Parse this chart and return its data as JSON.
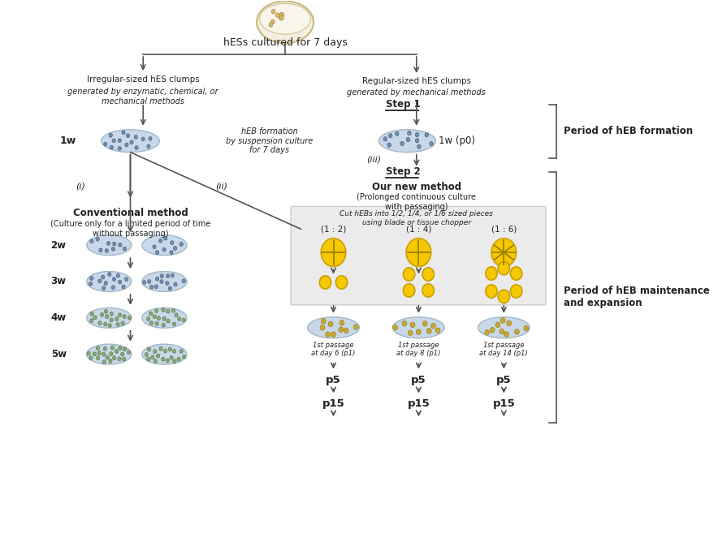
{
  "bg_color": "#ffffff",
  "title_text": "hESs cultured for 7 days",
  "left_branch_title": "Irregular-sized hES clumps",
  "left_branch_sub": "generated by enzymatic, chemical, or\nmechanical methods",
  "right_branch_title": "Regular-sized hES clumps",
  "right_branch_sub": "generated by mechanical methods",
  "step1_label": "Step 1",
  "step2_label": "Step 2",
  "heb_formation_text": "hEB formation\nby suspension culture\nfor 7 days",
  "week1_label": "1w",
  "week1p0_label": "1w (p0)",
  "roman_i": "(i)",
  "roman_ii": "(ii)",
  "roman_iii": "(iii)",
  "conventional_title": "Conventional method",
  "conventional_sub": "(Culture only for a limited period of time\nwithout passaging)",
  "new_method_title": "Our new method",
  "new_method_sub": "(Prolonged continuous culture\nwith passaging)",
  "cut_text": "Cut hEBs into 1/2, 1/4, or 1/6 sized pieces\nusing blade or tissue chopper",
  "ratio_1_2": "(1 : 2)",
  "ratio_1_4": "(1 : 4)",
  "ratio_1_6": "(1 : 6)",
  "passage_1_2": "1st passage\nat day 6 (p1)",
  "passage_1_4": "1st passage\nat day 8 (p1)",
  "passage_1_6": "1st passage\nat day 14 (p1)",
  "weeks": [
    "2w",
    "3w",
    "4w",
    "5w"
  ],
  "p5_label": "p5",
  "p15_label": "p15",
  "period_formation": "Period of hEB formation",
  "period_maintenance": "Period of hEB maintenance\nand expansion",
  "oval_color": "#c8d8e8",
  "oval_edge": "#a0b8c8",
  "yellow_color": "#f5c800",
  "yellow_edge": "#c8a000",
  "box_gray": "#e8e8e8",
  "arrow_color": "#555555",
  "text_color": "#222222"
}
